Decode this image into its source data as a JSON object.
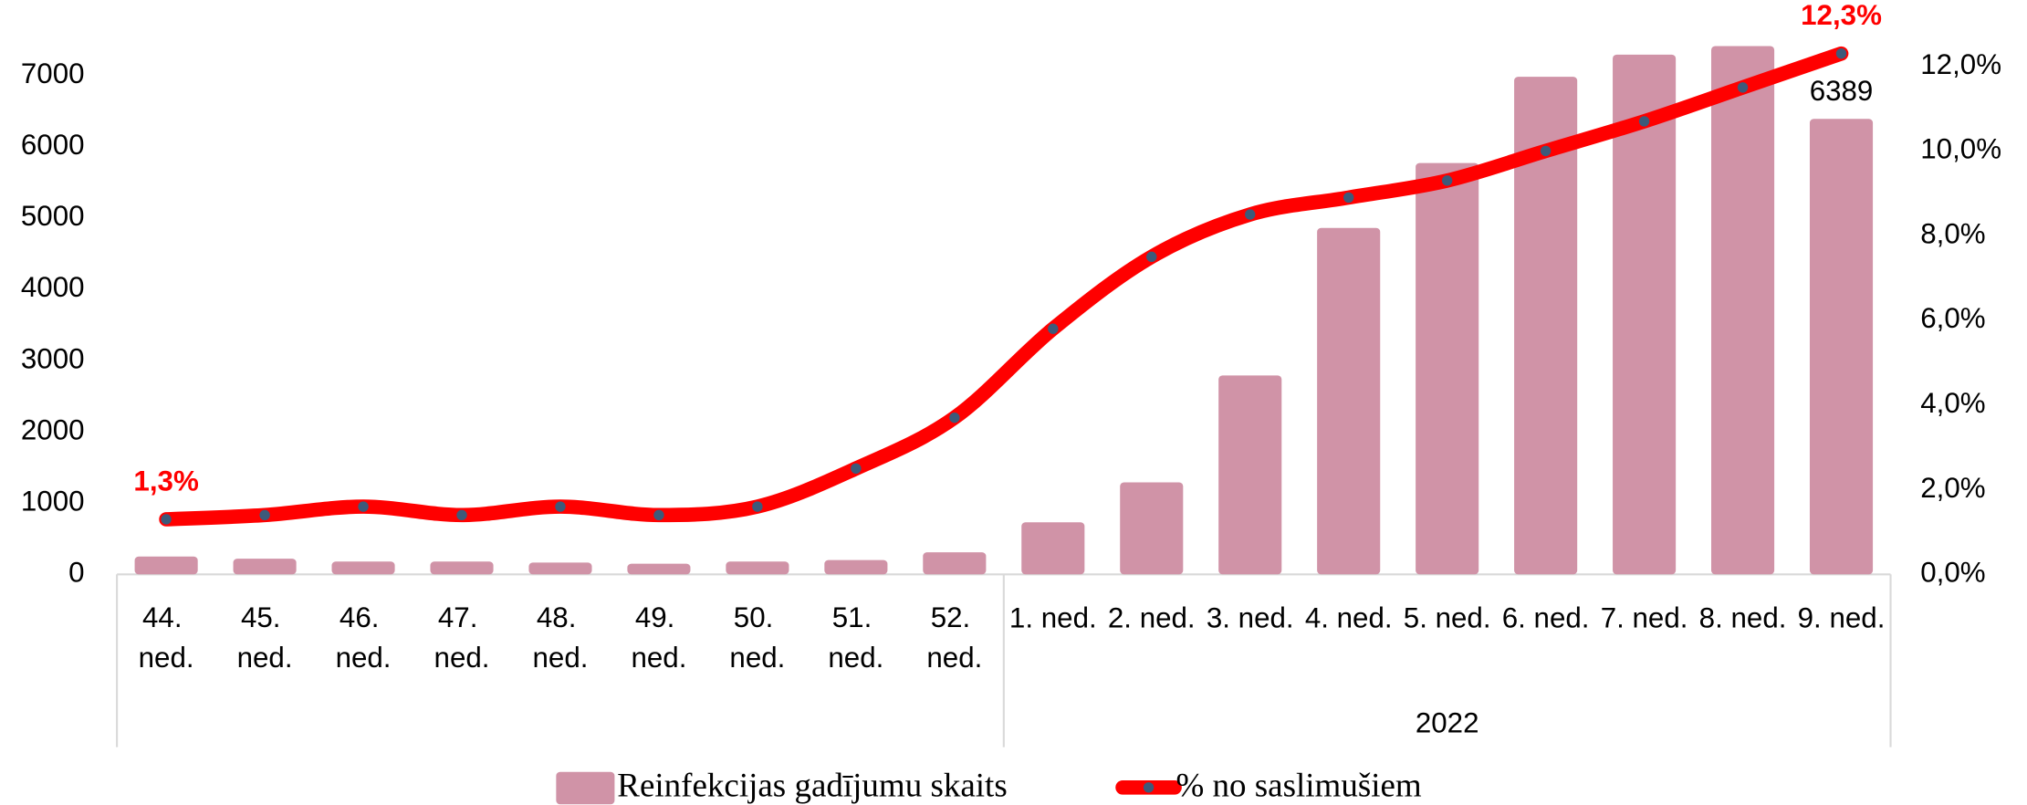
{
  "chart_data": {
    "type": "bar_line",
    "categories": [
      "44. ned.",
      "45. ned.",
      "46. ned.",
      "47. ned.",
      "48. ned.",
      "49. ned.",
      "50. ned.",
      "51. ned.",
      "52. ned.",
      "1. ned.",
      "2. ned.",
      "3. ned.",
      "4. ned.",
      "5. ned.",
      "6. ned.",
      "7. ned.",
      "8. ned.",
      "9. ned."
    ],
    "groups": [
      {
        "label": null,
        "count": 9
      },
      {
        "label": "2022",
        "count": 9
      }
    ],
    "series": [
      {
        "name": "Reinfekcijas gadījumu skaits",
        "type": "bar",
        "color": "#d093a7",
        "values": [
          250,
          220,
          180,
          180,
          165,
          150,
          180,
          200,
          310,
          730,
          1290,
          2790,
          4860,
          5770,
          6980,
          7290,
          7410,
          6389
        ],
        "value_labels": [
          null,
          null,
          null,
          null,
          null,
          null,
          null,
          null,
          null,
          null,
          null,
          null,
          null,
          null,
          null,
          null,
          null,
          "6389"
        ]
      },
      {
        "name": "% no saslimušiem",
        "type": "line",
        "axis": "y2",
        "color": "#ff0000",
        "marker_color": "#3d5a7a",
        "values": [
          1.3,
          1.4,
          1.6,
          1.4,
          1.6,
          1.4,
          1.6,
          2.5,
          3.7,
          5.8,
          7.5,
          8.5,
          8.9,
          9.3,
          10.0,
          10.7,
          11.5,
          12.3
        ],
        "value_labels": [
          "1,3%",
          null,
          null,
          null,
          null,
          null,
          null,
          null,
          null,
          null,
          null,
          null,
          null,
          null,
          null,
          null,
          null,
          "12,3%"
        ]
      }
    ],
    "ylim": [
      0,
      7000
    ],
    "yticks": [
      0,
      1000,
      2000,
      3000,
      4000,
      5000,
      6000,
      7000
    ],
    "y2lim": [
      0,
      12
    ],
    "y2ticks": [
      {
        "value": 0,
        "label": "0,0%"
      },
      {
        "value": 2,
        "label": "2,0%"
      },
      {
        "value": 4,
        "label": "4,0%"
      },
      {
        "value": 6,
        "label": "6,0%"
      },
      {
        "value": 8,
        "label": "8,0%"
      },
      {
        "value": 10,
        "label": "10,0%"
      },
      {
        "value": 12,
        "label": "12,0%"
      }
    ],
    "grid": false,
    "legend": "bottom"
  }
}
